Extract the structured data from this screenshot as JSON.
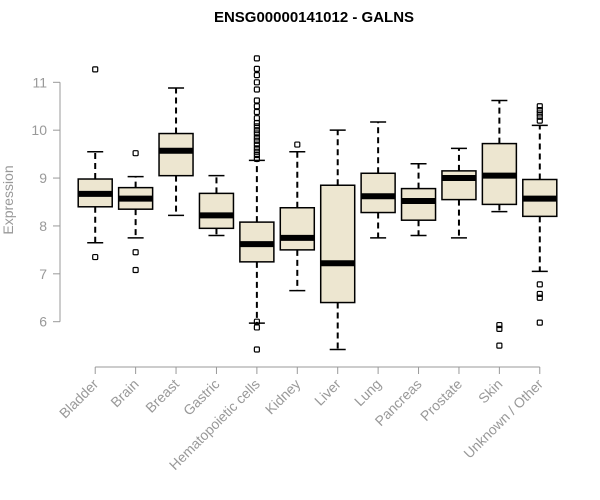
{
  "chart_data": {
    "type": "boxplot",
    "title": "ENSG00000141012 - GALNS",
    "xlabel": "",
    "ylabel": "Expression",
    "ylim": [
      5.2,
      11.8
    ],
    "yticks": [
      6,
      7,
      8,
      9,
      10,
      11
    ],
    "ytick_labels": [
      "6",
      "7",
      "8",
      "9",
      "10",
      "11"
    ],
    "grid": false,
    "box_fill": "#ede6d0",
    "series": [
      {
        "name": "Bladder",
        "whisker_low": 7.65,
        "q1": 8.4,
        "median": 8.67,
        "q3": 8.98,
        "whisker_high": 9.55,
        "outliers": [
          7.35,
          11.27
        ]
      },
      {
        "name": "Brain",
        "whisker_low": 7.75,
        "q1": 8.35,
        "median": 8.57,
        "q3": 8.8,
        "whisker_high": 9.03,
        "outliers": [
          7.08,
          7.45,
          9.52
        ]
      },
      {
        "name": "Breast",
        "whisker_low": 8.22,
        "q1": 9.05,
        "median": 9.57,
        "q3": 9.93,
        "whisker_high": 10.88,
        "outliers": []
      },
      {
        "name": "Gastric",
        "whisker_low": 7.8,
        "q1": 7.95,
        "median": 8.22,
        "q3": 8.68,
        "whisker_high": 9.05,
        "outliers": []
      },
      {
        "name": "Hematopoietic cells",
        "whisker_low": 5.97,
        "q1": 7.25,
        "median": 7.62,
        "q3": 8.08,
        "whisker_high": 9.37,
        "outliers": [
          5.42,
          5.88,
          6.0,
          9.4,
          9.48,
          9.55,
          9.62,
          9.7,
          9.78,
          9.85,
          9.93,
          10.0,
          10.08,
          10.15,
          10.25,
          10.38,
          10.5,
          10.62,
          10.85,
          11.0,
          11.15,
          11.28,
          11.5
        ]
      },
      {
        "name": "Kidney",
        "whisker_low": 6.65,
        "q1": 7.5,
        "median": 7.75,
        "q3": 8.38,
        "whisker_high": 9.55,
        "outliers": [
          9.7
        ]
      },
      {
        "name": "Liver",
        "whisker_low": 5.42,
        "q1": 6.4,
        "median": 7.22,
        "q3": 8.85,
        "whisker_high": 10.0,
        "outliers": []
      },
      {
        "name": "Lung",
        "whisker_low": 7.75,
        "q1": 8.28,
        "median": 8.62,
        "q3": 9.1,
        "whisker_high": 10.17,
        "outliers": []
      },
      {
        "name": "Pancreas",
        "whisker_low": 7.8,
        "q1": 8.12,
        "median": 8.52,
        "q3": 8.78,
        "whisker_high": 9.3,
        "outliers": []
      },
      {
        "name": "Prostate",
        "whisker_low": 7.75,
        "q1": 8.55,
        "median": 9.0,
        "q3": 9.15,
        "whisker_high": 9.62,
        "outliers": []
      },
      {
        "name": "Skin",
        "whisker_low": 8.3,
        "q1": 8.45,
        "median": 9.05,
        "q3": 9.72,
        "whisker_high": 10.62,
        "outliers": [
          5.5,
          5.85,
          5.93
        ]
      },
      {
        "name": "Unknown / Other",
        "whisker_low": 7.05,
        "q1": 8.2,
        "median": 8.57,
        "q3": 8.97,
        "whisker_high": 10.1,
        "outliers": [
          5.98,
          6.5,
          6.58,
          6.78,
          10.2,
          10.28,
          10.35,
          10.42,
          10.5
        ]
      }
    ]
  }
}
